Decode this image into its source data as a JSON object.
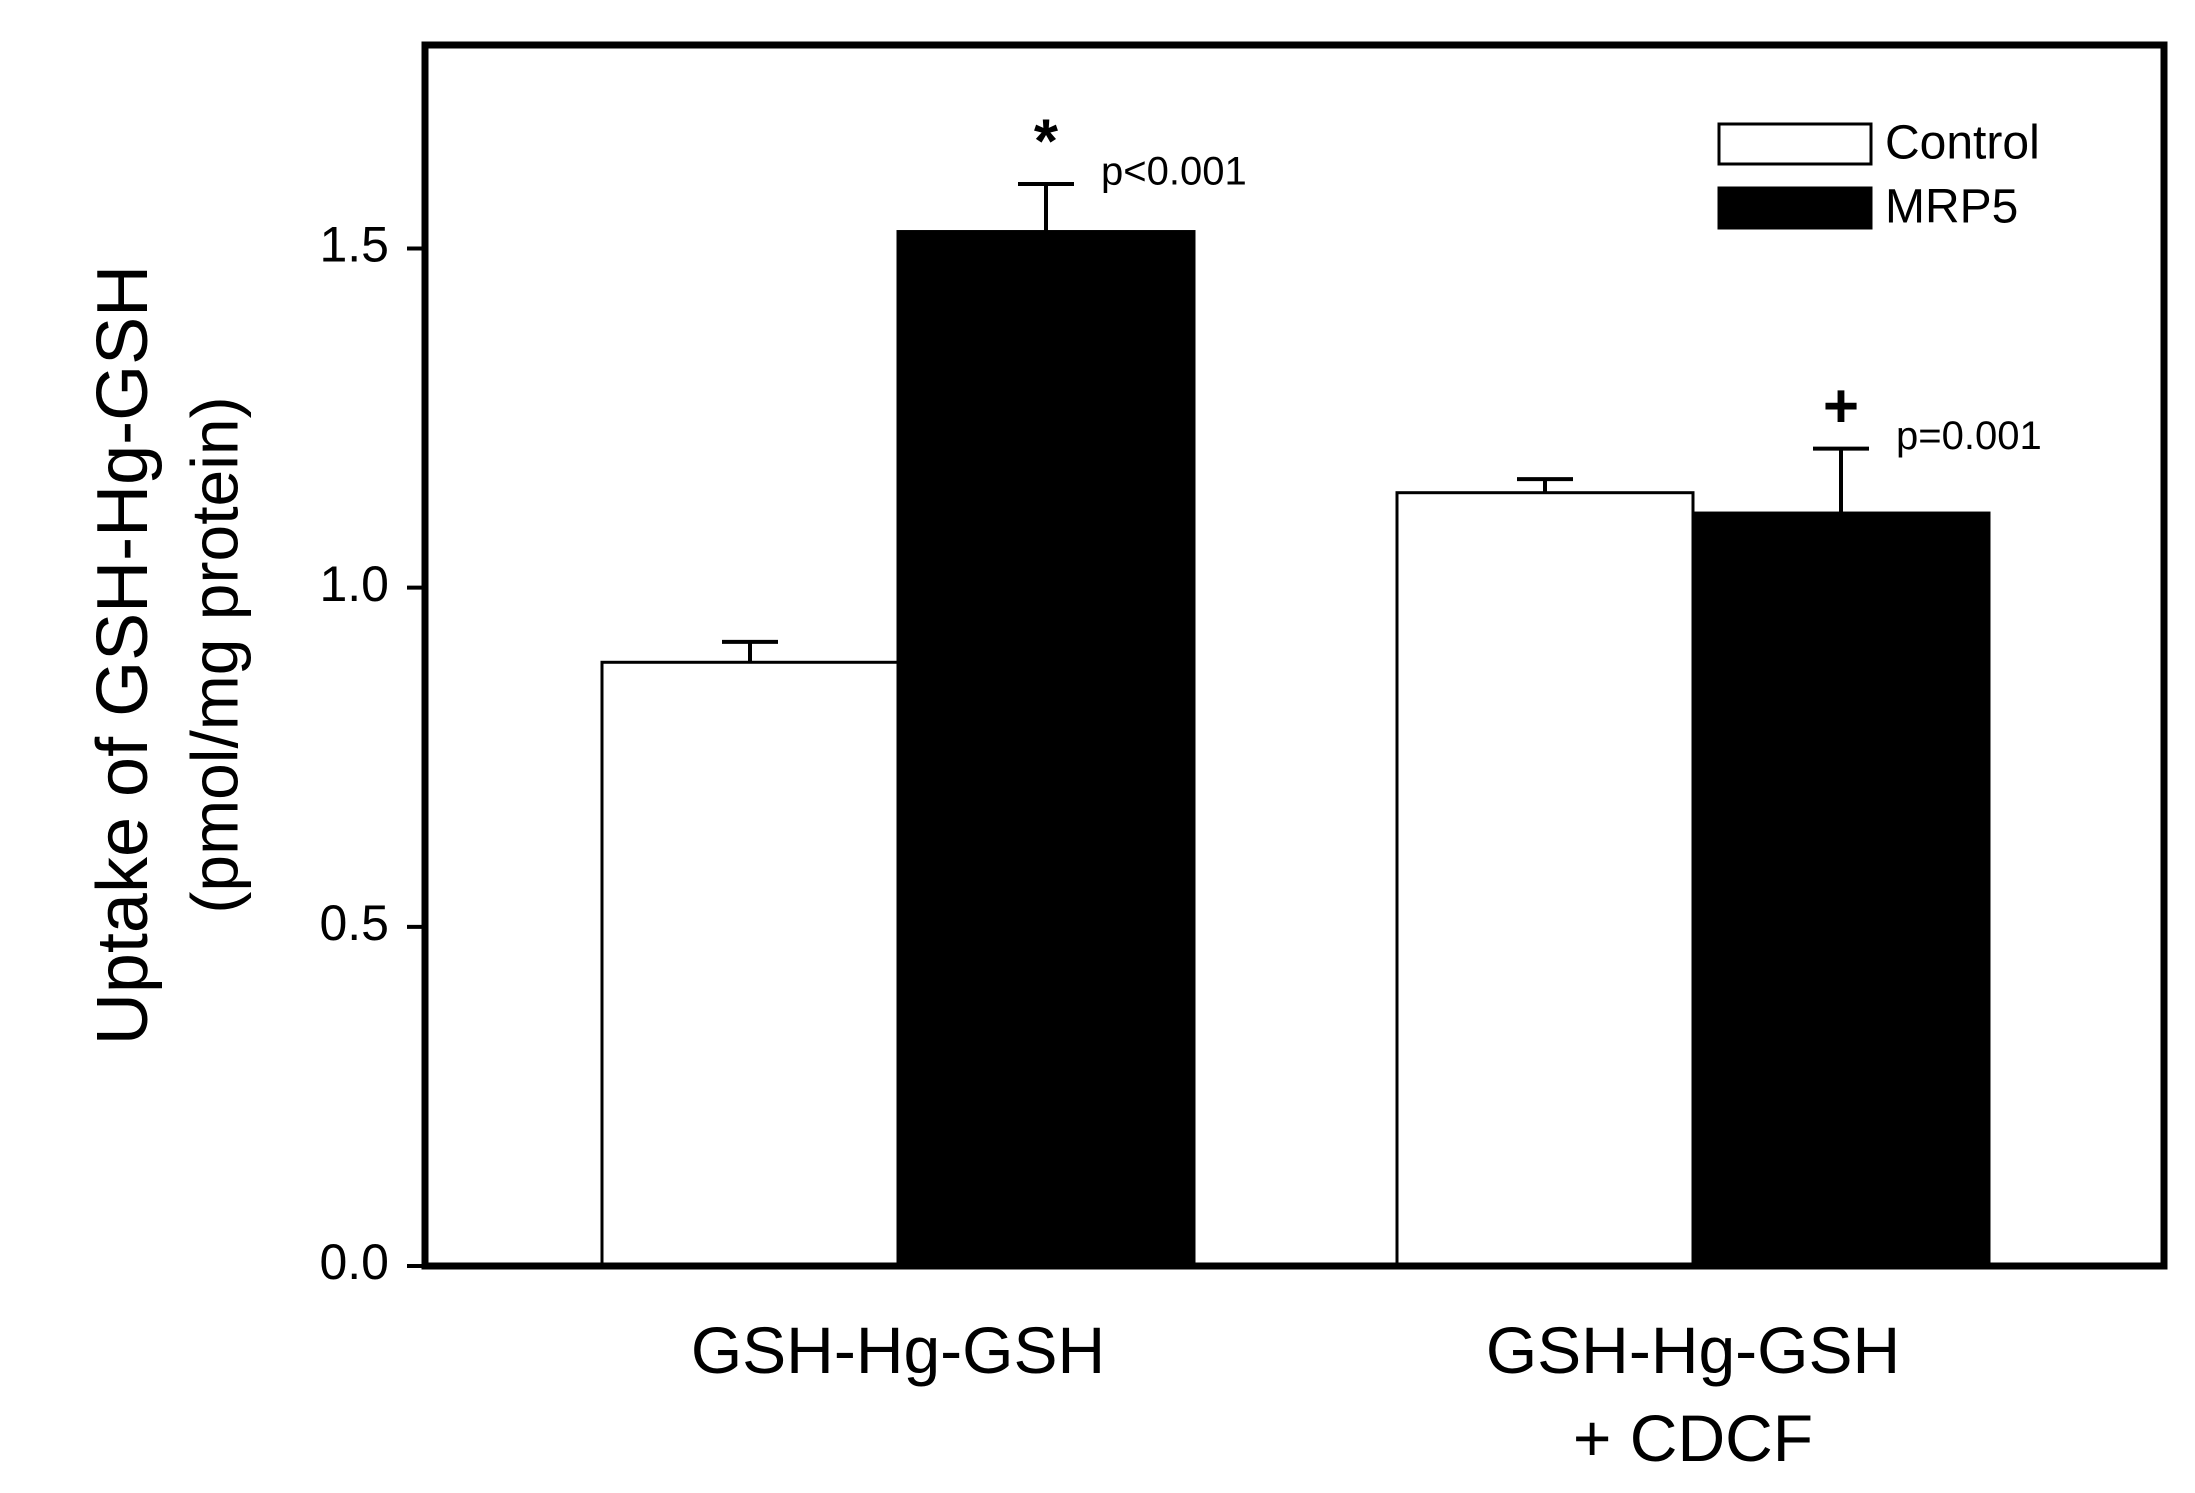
{
  "chart_data": {
    "type": "bar",
    "y_label": [
      "Uptake of GSH-Hg-GSH",
      "(pmol/mg protein)"
    ],
    "categories": [
      "GSH-Hg-GSH",
      "GSH-Hg-GSH\n+ CDCF"
    ],
    "series": [
      {
        "name": "Control",
        "color": "#ffffff",
        "values": [
          0.89,
          1.14
        ],
        "errors": [
          0.03,
          0.02
        ]
      },
      {
        "name": "MRP5",
        "color": "#000000",
        "values": [
          1.525,
          1.11
        ],
        "errors": [
          0.07,
          0.095
        ],
        "markers": [
          "*",
          "+"
        ],
        "notes": [
          "p<0.001",
          "p=0.001"
        ]
      }
    ],
    "ylim": [
      0,
      1.8
    ],
    "yticks": [
      {
        "value": 0,
        "label": "0.0"
      },
      0.5,
      {
        "value": 1,
        "label": "1.0"
      },
      1.5
    ],
    "legend": "top-right"
  }
}
